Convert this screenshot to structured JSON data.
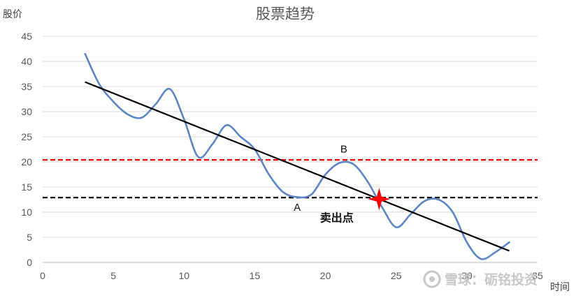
{
  "chart_data": {
    "type": "line",
    "title": "股票趋势",
    "ylabel": "股价",
    "xlabel": "时间",
    "xlim": [
      0,
      35
    ],
    "ylim": [
      0,
      45
    ],
    "x_ticks": [
      0,
      5,
      10,
      15,
      20,
      25,
      30,
      35
    ],
    "y_ticks": [
      0,
      5,
      10,
      15,
      20,
      25,
      30,
      35,
      40,
      45
    ],
    "grid": "horizontal",
    "series": [
      {
        "color": "#5b86c5",
        "points": [
          [
            3,
            41.5
          ],
          [
            4,
            35.5
          ],
          [
            5,
            32
          ],
          [
            6,
            29.5
          ],
          [
            7,
            28.8
          ],
          [
            8,
            31.5
          ],
          [
            9,
            34.5
          ],
          [
            10,
            28.5
          ],
          [
            11,
            21
          ],
          [
            12,
            23.5
          ],
          [
            13,
            27.3
          ],
          [
            14,
            25
          ],
          [
            15,
            22.5
          ],
          [
            16,
            17.5
          ],
          [
            17,
            14
          ],
          [
            18,
            13
          ],
          [
            19,
            13.5
          ],
          [
            20,
            17.5
          ],
          [
            21,
            19.8
          ],
          [
            22,
            19.5
          ],
          [
            23,
            16
          ],
          [
            24,
            11
          ],
          [
            25,
            7
          ],
          [
            26,
            9.5
          ],
          [
            27,
            12.2
          ],
          [
            28,
            12.5
          ],
          [
            29,
            10
          ],
          [
            30,
            4
          ],
          [
            31,
            0.7
          ],
          [
            32,
            2
          ],
          [
            33,
            4
          ]
        ]
      }
    ],
    "trend_line": {
      "color": "#000000",
      "from": [
        3,
        35.9
      ],
      "to": [
        33,
        2.3
      ]
    },
    "reference_lines": [
      {
        "y": 20.4,
        "color": "#ff0000",
        "style": "dashed"
      },
      {
        "y": 12.9,
        "color": "#000000",
        "style": "dashed"
      }
    ],
    "annotations": [
      {
        "text": "B",
        "x": 21.3,
        "y": 21.9
      },
      {
        "text": "A",
        "x": 18.0,
        "y": 10.3
      },
      {
        "text": "卖出点",
        "x": 20.8,
        "y": 8.1,
        "bold": true
      }
    ],
    "marker": {
      "x": 23.8,
      "y": 12.6,
      "color": "#ff0000",
      "shape": "star"
    }
  },
  "watermark": "雪球：砺铭投资"
}
